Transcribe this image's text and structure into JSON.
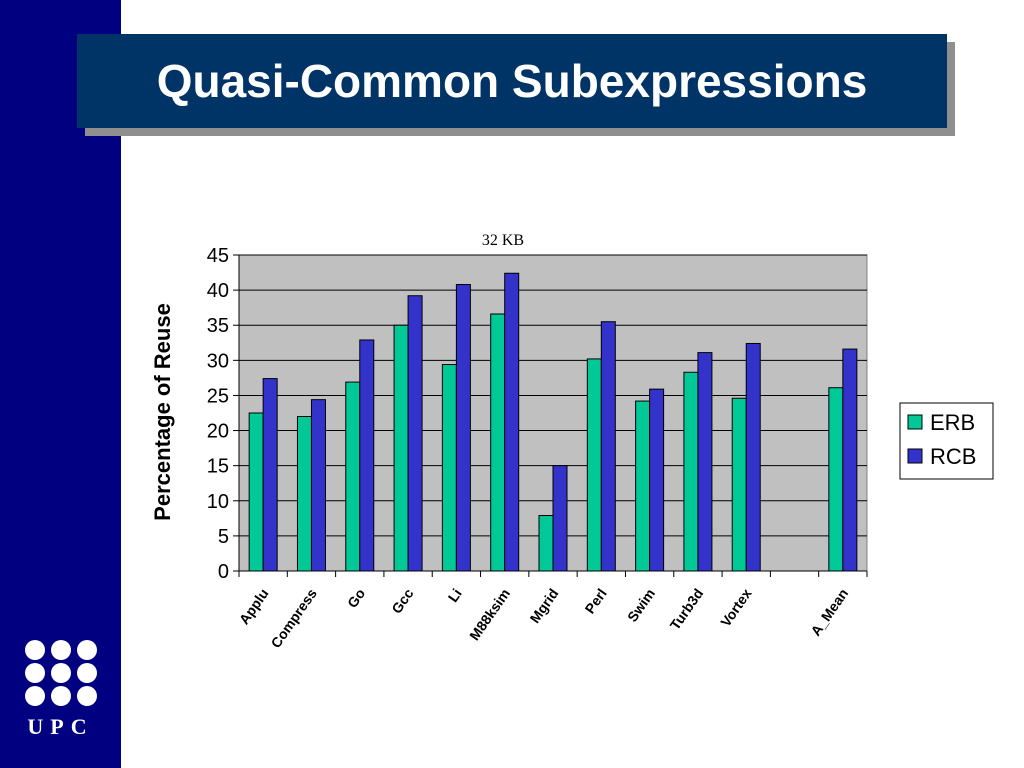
{
  "slide": {
    "title": "Quasi-Common Subexpressions",
    "logo_text": "UPC"
  },
  "colors": {
    "sidebar": "#000080",
    "title_bg": "#003366",
    "plot_bg": "#c0c0c0",
    "erb": "#00c896",
    "rcb": "#3333cc"
  },
  "chart_data": {
    "type": "bar",
    "title": "32 KB",
    "xlabel": "",
    "ylabel": "Percentage of Reuse",
    "ylim": [
      0,
      45
    ],
    "yticks": [
      0,
      5,
      10,
      15,
      20,
      25,
      30,
      35,
      40,
      45
    ],
    "grid": true,
    "legend_position": "right",
    "categories": [
      "Applu",
      "Compress",
      "Go",
      "Gcc",
      "Li",
      "M88ksim",
      "Mgrid",
      "Perl",
      "Swim",
      "Turb3d",
      "Vortex",
      "",
      "A_Mean"
    ],
    "series": [
      {
        "name": "ERB",
        "color": "#00c896",
        "values": [
          22.5,
          22,
          26.9,
          35,
          29.4,
          36.6,
          7.9,
          30.2,
          24.2,
          28.3,
          24.6,
          null,
          26.1
        ]
      },
      {
        "name": "RCB",
        "color": "#3333cc",
        "values": [
          27.4,
          24.4,
          32.9,
          39.2,
          40.8,
          42.4,
          15,
          35.5,
          25.9,
          31.1,
          32.4,
          null,
          31.6
        ]
      }
    ]
  }
}
